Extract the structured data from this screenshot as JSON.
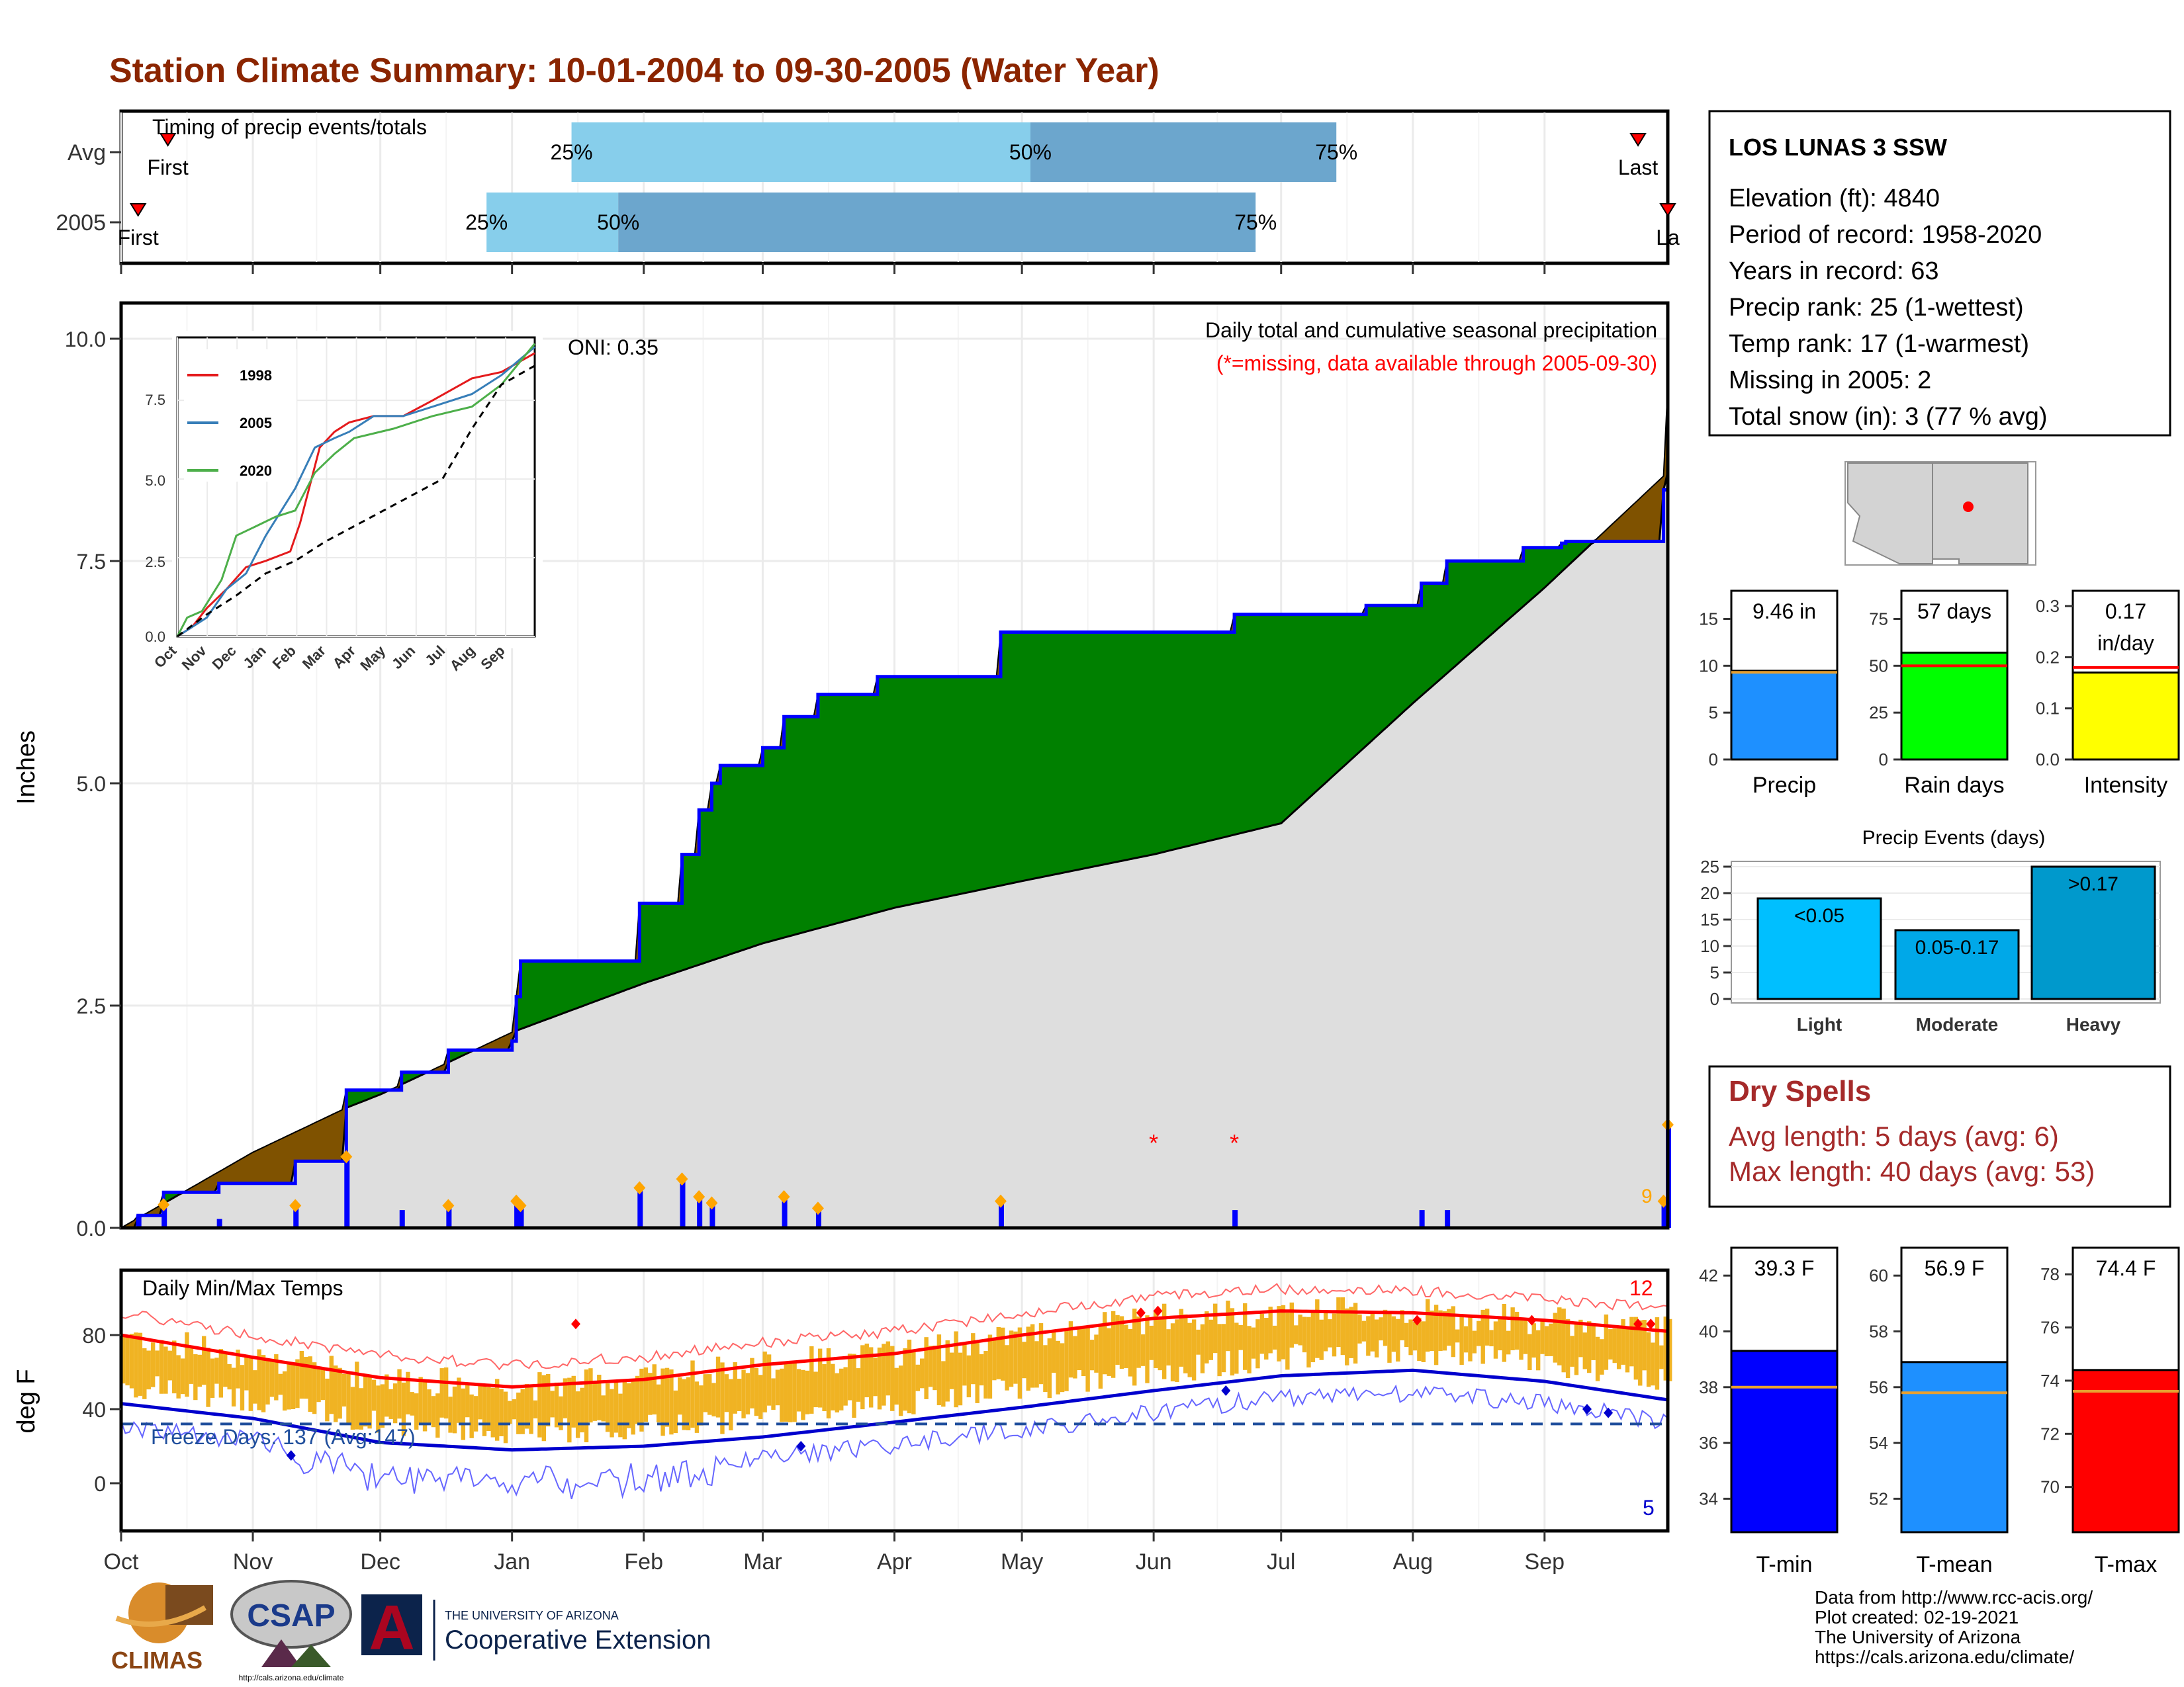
{
  "title": "Station Climate Summary: 10-01-2004 to 09-30-2005 (Water Year)",
  "colors": {
    "title": "#8B2500",
    "green": "#008000",
    "brown": "#7F5200",
    "gray_fill": "#DEDEDE",
    "blue": "#0000FF",
    "red": "#FF0000",
    "orange": "#FFA500",
    "lightblue": "#87CEEB",
    "steelblue": "#6CA6CD",
    "dry_red": "#A52A2A"
  },
  "months": [
    "Oct",
    "Nov",
    "Dec",
    "Jan",
    "Feb",
    "Mar",
    "Apr",
    "May",
    "Jun",
    "Jul",
    "Aug",
    "Sep"
  ],
  "timing": {
    "label": "Timing of precip events/totals",
    "rows": [
      {
        "label": "Avg",
        "first": "First",
        "last": "Last",
        "p25": "25%",
        "p50": "50%",
        "p75": "75%",
        "first_day": 11,
        "p25_day": 106,
        "p50_day": 214,
        "p75_day": 286,
        "last_day": 357
      },
      {
        "label": "2005",
        "first": "First",
        "last": "La",
        "p25": "25%",
        "p50": "50%",
        "p75": "75%",
        "first_day": 4,
        "p25_day": 86,
        "p50_day": 117,
        "p75_day": 267,
        "last_day": 364
      }
    ]
  },
  "main_chart": {
    "ylabel": "Inches",
    "yticks": [
      "0.0",
      "2.5",
      "5.0",
      "7.5",
      "10.0"
    ],
    "legend_line1": "Daily total and cumulative seasonal precipitation",
    "legend_line2": "(*=missing, data available through 2005-09-30)",
    "oni": "ONI: 0.35",
    "count_label": "9",
    "missing_marker": "*",
    "missing_days": [
      243,
      262
    ],
    "inset": {
      "yticks": [
        "0.0",
        "2.5",
        "5.0",
        "7.5"
      ],
      "xticks": [
        "Oct",
        "Nov",
        "Dec",
        "Jan",
        "Feb",
        "Mar",
        "Apr",
        "May",
        "Jun",
        "Jul",
        "Aug",
        "Sep"
      ],
      "legend": [
        {
          "name": "1998",
          "color": "#E41A1C"
        },
        {
          "name": "2005",
          "color": "#377EB8"
        },
        {
          "name": "2020",
          "color": "#4DAF4A"
        }
      ]
    }
  },
  "chart_data": [
    {
      "type": "area",
      "title": "Daily total and cumulative seasonal precipitation",
      "xlabel": "",
      "ylabel": "Inches",
      "ylim": [
        0,
        10.3
      ],
      "xlim": [
        "2004-10-01",
        "2005-09-30"
      ],
      "series": [
        {
          "name": "2005 cumulative",
          "points": [
            [
              "2004-10-01",
              0.0
            ],
            [
              "2004-10-05",
              0.14
            ],
            [
              "2004-10-11",
              0.4
            ],
            [
              "2004-10-24",
              0.5
            ],
            [
              "2004-11-11",
              0.75
            ],
            [
              "2004-11-23",
              1.55
            ],
            [
              "2004-12-06",
              1.75
            ],
            [
              "2004-12-17",
              2.0
            ],
            [
              "2005-01-01",
              2.1
            ],
            [
              "2005-01-02",
              2.6
            ],
            [
              "2005-01-03",
              3.0
            ],
            [
              "2005-01-31",
              3.65
            ],
            [
              "2005-02-10",
              4.2
            ],
            [
              "2005-02-14",
              4.7
            ],
            [
              "2005-02-17",
              5.0
            ],
            [
              "2005-02-19",
              5.2
            ],
            [
              "2005-03-01",
              5.4
            ],
            [
              "2005-03-06",
              5.75
            ],
            [
              "2005-03-14",
              6.0
            ],
            [
              "2005-03-28",
              6.2
            ],
            [
              "2005-04-26",
              6.7
            ],
            [
              "2005-06-20",
              6.9
            ],
            [
              "2005-07-21",
              7.0
            ],
            [
              "2005-08-03",
              7.25
            ],
            [
              "2005-08-09",
              7.5
            ],
            [
              "2005-08-27",
              7.65
            ],
            [
              "2005-09-05",
              7.7
            ],
            [
              "2005-09-06",
              7.72
            ],
            [
              "2005-09-29",
              8.3
            ],
            [
              "2005-09-30",
              9.46
            ]
          ]
        },
        {
          "name": "Average cumulative",
          "points": [
            [
              "2004-10-01",
              0.0
            ],
            [
              "2004-11-01",
              0.85
            ],
            [
              "2004-11-23",
              1.35
            ],
            [
              "2004-12-01",
              1.5
            ],
            [
              "2005-01-01",
              2.2
            ],
            [
              "2005-02-01",
              2.75
            ],
            [
              "2005-03-01",
              3.2
            ],
            [
              "2005-04-01",
              3.6
            ],
            [
              "2005-05-01",
              3.9
            ],
            [
              "2005-06-01",
              4.2
            ],
            [
              "2005-07-01",
              4.55
            ],
            [
              "2005-08-01",
              5.9
            ],
            [
              "2005-09-01",
              7.2
            ],
            [
              "2005-09-30",
              8.5
            ]
          ]
        },
        {
          "name": "Daily precip",
          "points": [
            [
              "2004-10-05",
              0.14
            ],
            [
              "2004-10-11",
              0.26
            ],
            [
              "2004-10-24",
              0.1
            ],
            [
              "2004-11-11",
              0.25
            ],
            [
              "2004-11-23",
              0.8
            ],
            [
              "2004-12-06",
              0.2
            ],
            [
              "2004-12-17",
              0.25
            ],
            [
              "2005-01-02",
              0.3
            ],
            [
              "2005-01-03",
              0.25
            ],
            [
              "2005-01-31",
              0.45
            ],
            [
              "2005-02-10",
              0.55
            ],
            [
              "2005-02-14",
              0.35
            ],
            [
              "2005-02-17",
              0.28
            ],
            [
              "2005-03-06",
              0.35
            ],
            [
              "2005-03-14",
              0.22
            ],
            [
              "2005-04-26",
              0.3
            ],
            [
              "2005-06-20",
              0.2
            ],
            [
              "2005-08-03",
              0.2
            ],
            [
              "2005-08-09",
              0.2
            ],
            [
              "2005-09-29",
              0.3
            ],
            [
              "2005-09-30",
              1.16
            ]
          ]
        }
      ]
    },
    {
      "type": "line",
      "title": "",
      "xlabel": "",
      "ylabel": "",
      "ylim": [
        0,
        9.5
      ],
      "series": [
        {
          "name": "1998",
          "points": [
            [
              0,
              0
            ],
            [
              15,
              0.3
            ],
            [
              30,
              0.9
            ],
            [
              50,
              1.5
            ],
            [
              70,
              2.2
            ],
            [
              90,
              2.4
            ],
            [
              115,
              2.7
            ],
            [
              125,
              3.6
            ],
            [
              145,
              6.0
            ],
            [
              160,
              6.5
            ],
            [
              175,
              6.8
            ],
            [
              200,
              7.0
            ],
            [
              230,
              7.0
            ],
            [
              260,
              7.5
            ],
            [
              300,
              8.2
            ],
            [
              330,
              8.4
            ],
            [
              364,
              9.0
            ]
          ]
        },
        {
          "name": "2005",
          "points": [
            [
              0,
              0
            ],
            [
              15,
              0.3
            ],
            [
              30,
              0.6
            ],
            [
              50,
              1.5
            ],
            [
              70,
              2.0
            ],
            [
              90,
              3.2
            ],
            [
              120,
              4.7
            ],
            [
              140,
              6.0
            ],
            [
              160,
              6.3
            ],
            [
              175,
              6.5
            ],
            [
              200,
              7.0
            ],
            [
              230,
              7.0
            ],
            [
              260,
              7.3
            ],
            [
              300,
              7.7
            ],
            [
              330,
              8.3
            ],
            [
              364,
              9.2
            ]
          ]
        },
        {
          "name": "2020",
          "points": [
            [
              0,
              0
            ],
            [
              10,
              0.6
            ],
            [
              25,
              0.8
            ],
            [
              45,
              1.8
            ],
            [
              60,
              3.2
            ],
            [
              80,
              3.5
            ],
            [
              100,
              3.8
            ],
            [
              120,
              4.0
            ],
            [
              140,
              5.2
            ],
            [
              160,
              5.8
            ],
            [
              180,
              6.3
            ],
            [
              220,
              6.6
            ],
            [
              260,
              7.0
            ],
            [
              300,
              7.3
            ],
            [
              330,
              8.0
            ],
            [
              364,
              9.3
            ]
          ]
        },
        {
          "name": "Average",
          "points": [
            [
              0,
              0
            ],
            [
              30,
              0.7
            ],
            [
              60,
              1.3
            ],
            [
              90,
              2.0
            ],
            [
              120,
              2.4
            ],
            [
              150,
              3.0
            ],
            [
              180,
              3.5
            ],
            [
              210,
              4.0
            ],
            [
              240,
              4.5
            ],
            [
              270,
              5.0
            ],
            [
              300,
              6.6
            ],
            [
              330,
              8.0
            ],
            [
              364,
              8.6
            ]
          ]
        }
      ]
    },
    {
      "type": "bar",
      "title": "",
      "categories": [
        "Precip",
        "Rain days",
        "Intensity"
      ],
      "values": [
        9.46,
        57,
        0.17
      ],
      "labels": [
        "9.46 in",
        "57 days",
        "0.17 in/day"
      ],
      "averages": [
        9.3,
        50,
        0.18
      ]
    },
    {
      "type": "bar",
      "title": "Precip Events (days)",
      "categories": [
        "Light",
        "Moderate",
        "Heavy"
      ],
      "series_labels": [
        "<0.05",
        "0.05-0.17",
        ">0.17"
      ],
      "values": [
        19,
        13,
        25
      ],
      "ylim": [
        0,
        25
      ]
    },
    {
      "type": "line",
      "title": "Daily Min/Max Temps",
      "ylabel": "deg F",
      "ylim": [
        -28,
        107
      ],
      "series": [
        {
          "name": "Avg max",
          "points": [
            [
              "2004-10-01",
              80
            ],
            [
              "2004-11-01",
              68
            ],
            [
              "2004-12-01",
              57
            ],
            [
              "2005-01-01",
              52
            ],
            [
              "2005-02-01",
              56
            ],
            [
              "2005-03-01",
              64
            ],
            [
              "2005-04-01",
              70
            ],
            [
              "2005-05-01",
              80
            ],
            [
              "2005-06-01",
              89
            ],
            [
              "2005-07-01",
              93
            ],
            [
              "2005-08-01",
              92
            ],
            [
              "2005-09-01",
              88
            ],
            [
              "2005-09-30",
              82
            ]
          ]
        },
        {
          "name": "Avg min",
          "points": [
            [
              "2004-10-01",
              43
            ],
            [
              "2004-11-01",
              35
            ],
            [
              "2004-12-01",
              22
            ],
            [
              "2005-01-01",
              18
            ],
            [
              "2005-02-01",
              20
            ],
            [
              "2005-03-01",
              25
            ],
            [
              "2005-04-01",
              33
            ],
            [
              "2005-05-01",
              41
            ],
            [
              "2005-06-01",
              50
            ],
            [
              "2005-07-01",
              58
            ],
            [
              "2005-08-01",
              61
            ],
            [
              "2005-09-01",
              55
            ],
            [
              "2005-09-30",
              45
            ]
          ]
        }
      ],
      "freeze_line": 32,
      "freeze_label": "Freeze Days: 137 (Avg:147)",
      "record_high_count": "12",
      "record_low_count": "5"
    },
    {
      "type": "bar",
      "title": "",
      "categories": [
        "T-min",
        "T-mean",
        "T-max"
      ],
      "values": [
        39.3,
        56.9,
        74.4
      ],
      "labels": [
        "39.3 F",
        "56.9 F",
        "74.4 F"
      ],
      "averages": [
        38.0,
        55.8,
        73.6
      ]
    }
  ],
  "station": {
    "name": "LOS LUNAS 3 SSW",
    "lines": [
      "Elevation (ft): 4840",
      "Period of record: 1958-2020",
      "Years in record: 63",
      "Precip rank: 25 (1-wettest)",
      "Temp rank: 17 (1-warmest)",
      "Missing in 2005: 2",
      "Total snow (in): 3 (77 % avg)"
    ]
  },
  "precip_bars": {
    "yticks": [
      [
        "0",
        "5",
        "10",
        "15"
      ],
      [
        "0",
        "25",
        "50",
        "75"
      ],
      [
        "0.0",
        "0.1",
        "0.2",
        "0.3"
      ]
    ]
  },
  "events": {
    "title": "Precip Events (days)",
    "yticks": [
      "0",
      "5",
      "10",
      "15",
      "20",
      "25"
    ]
  },
  "temp_chart": {
    "yticks": [
      "0",
      "40",
      "80"
    ]
  },
  "dry_spells": {
    "title": "Dry Spells",
    "avg": "Avg length: 5 days (avg: 6)",
    "max": "Max length: 40 days (avg: 53)"
  },
  "temp_bars": {
    "yticks": [
      [
        "34",
        "36",
        "38",
        "40",
        "42"
      ],
      [
        "52",
        "54",
        "56",
        "58",
        "60"
      ],
      [
        "70",
        "72",
        "74",
        "76",
        "78"
      ]
    ]
  },
  "credits": [
    "Data from http://www.rcc-acis.org/",
    "Plot created: 02-19-2021",
    "The University of Arizona",
    "https://cals.arizona.edu/climate/"
  ],
  "logos": {
    "climas": "CLIMAS",
    "csap": "CSAP",
    "csap_url": "http://cals.arizona.edu/climate",
    "ua_letter": "A",
    "ua_small": "THE UNIVERSITY OF ARIZONA",
    "ua_big": "Cooperative Extension"
  }
}
